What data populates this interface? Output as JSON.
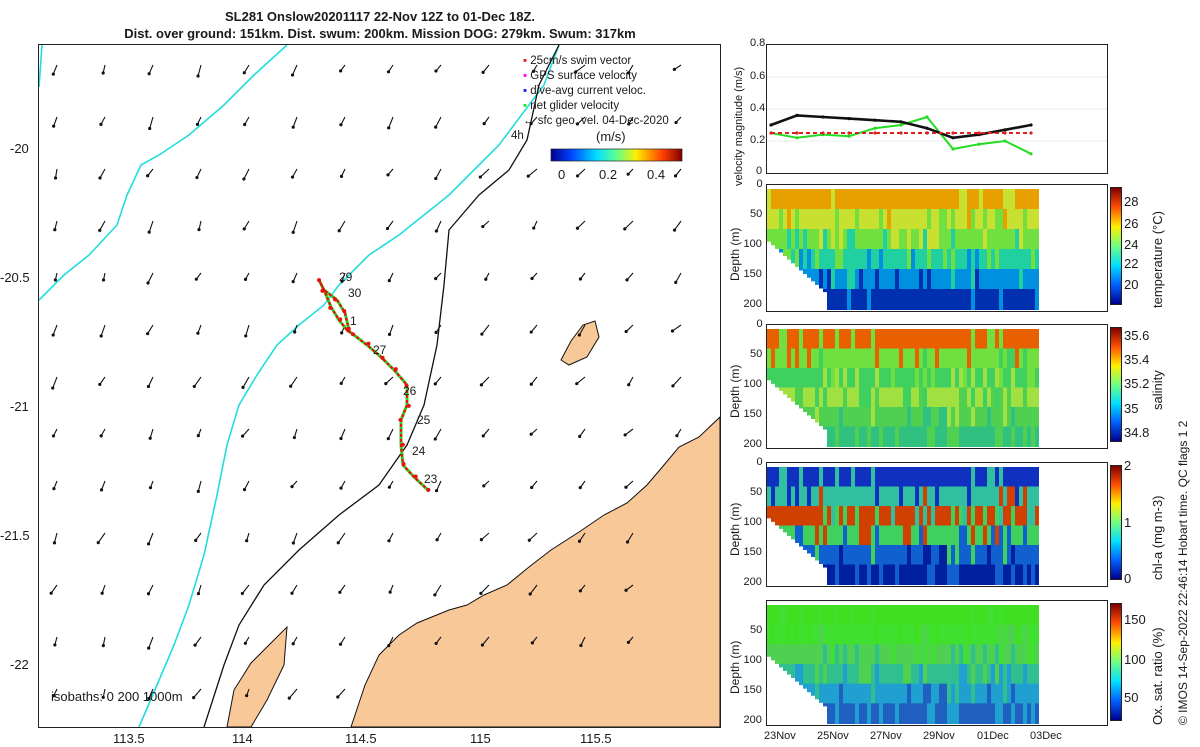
{
  "header": {
    "title_line1": "SL281 Onslow20201117 22-Nov 12Z to 01-Dec 18Z.",
    "title_line2": "Dist. over ground: 151km. Dist. swum: 200km. Mission DOG: 279km. Swum: 317km"
  },
  "map": {
    "lon_ticks": [
      "113.5",
      "114",
      "114.5",
      "115",
      "115.5"
    ],
    "lat_ticks": [
      "-20",
      "-20.5",
      "-21",
      "-21.5",
      "-22"
    ],
    "legend": [
      {
        "label": "25cm/s swim vector",
        "color": "#e02020"
      },
      {
        "label": "GPS surface velocity",
        "color": "#ff00ff"
      },
      {
        "label": "dive-avg current veloc.",
        "color": "#2020ff"
      },
      {
        "label": "net glider velocity",
        "color": "#22ee22"
      },
      {
        "label": "sfc geo. vel. 04-Dec-2020",
        "color": "#111111"
      }
    ],
    "legend_suffix": "4h",
    "colorbar_unit": "(m/s)",
    "colorbar_ticks": [
      "0",
      "0.2",
      "0.4"
    ],
    "day_labels": [
      "29",
      "30",
      "1",
      "27",
      "26",
      "25",
      "24",
      "23"
    ],
    "isobaths_label": "isobaths: 0   200  1000m",
    "colors": {
      "land": "#f8c898",
      "coast_isobath": "#22dddd",
      "track": "#e81010"
    }
  },
  "panels": {
    "velocity": {
      "ylabel": "velocity magnitude (m/s)",
      "yticks": [
        "0",
        "0.2",
        "0.4",
        "0.6",
        "0.8"
      ]
    },
    "temperature": {
      "ylabel": "Depth (m)",
      "cblabel": "temperature (°C)",
      "cbticks": [
        "28",
        "26",
        "24",
        "22",
        "20"
      ]
    },
    "salinity": {
      "ylabel": "Depth (m)",
      "cblabel": "salinity",
      "cbticks": [
        "35.6",
        "35.4",
        "35.2",
        "35",
        "34.8"
      ]
    },
    "chla": {
      "ylabel": "Depth (m)",
      "cblabel": "chl-a (mg m-3)",
      "cbticks": [
        "2",
        "1",
        "0"
      ]
    },
    "oxygen": {
      "ylabel": "Depth (m)",
      "cblabel": "Ox. sat. ratio (%)",
      "cbticks": [
        "150",
        "100",
        "50"
      ]
    },
    "depth_ticks": [
      "0",
      "50",
      "100",
      "150",
      "200"
    ],
    "depth_ticks_oxy": [
      "50",
      "100",
      "150",
      "200"
    ],
    "time_ticks": [
      "23Nov",
      "25Nov",
      "27Nov",
      "29Nov",
      "01Dec",
      "03Dec"
    ]
  },
  "footer_note": "© IMOS 14-Sep-2022 22:46:14 Hobart time. QC flags 1  2",
  "chart_data": {
    "type": "line",
    "title": "SL281 Onslow20201117 22-Nov 12Z to 01-Dec 18Z.",
    "xlabel": "",
    "ylabel": "velocity magnitude (m/s)",
    "ylim": [
      0,
      0.8
    ],
    "x": [
      "22-Nov 12Z",
      "23-Nov",
      "24-Nov",
      "25-Nov",
      "26-Nov",
      "27-Nov",
      "28-Nov",
      "29-Nov",
      "30-Nov",
      "01-Dec",
      "01-Dec 18Z"
    ],
    "series": [
      {
        "name": "net glider velocity",
        "color": "#22dd22",
        "values": [
          0.25,
          0.22,
          0.24,
          0.23,
          0.28,
          0.3,
          0.35,
          0.15,
          0.18,
          0.2,
          0.12
        ]
      },
      {
        "name": "dive-avg current veloc.",
        "color": "#111111",
        "values": [
          0.3,
          0.36,
          0.35,
          0.34,
          0.33,
          0.32,
          0.28,
          0.22,
          0.24,
          0.27,
          0.3
        ]
      },
      {
        "name": "25cm/s swim vector",
        "color": "#e02020",
        "values": [
          0.25,
          0.25,
          0.25,
          0.25,
          0.25,
          0.25,
          0.25,
          0.25,
          0.25,
          0.25,
          0.25
        ]
      }
    ]
  }
}
